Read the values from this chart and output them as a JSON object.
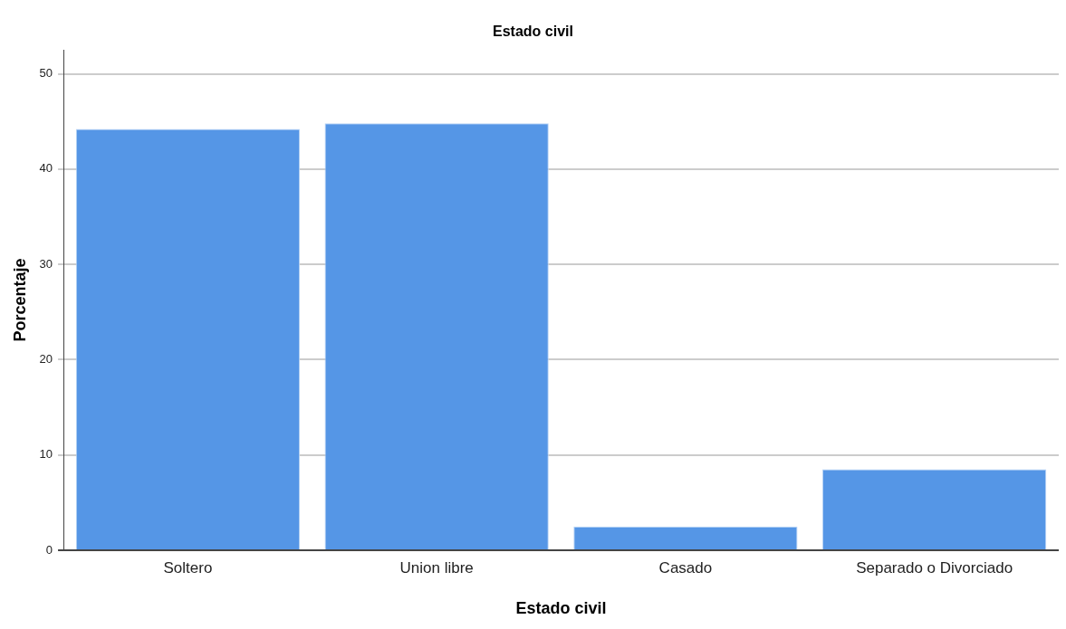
{
  "chart_data": {
    "type": "bar",
    "title": "Estado civil",
    "xlabel": "Estado civil",
    "ylabel": "Porcentaje",
    "categories": [
      "Soltero",
      "Union libre",
      "Casado",
      "Separado o Divorciado"
    ],
    "values": [
      44.2,
      44.8,
      2.5,
      8.5
    ],
    "color": "#5596e6",
    "ylim": [
      0,
      52.5
    ],
    "yticks": [
      0,
      10,
      20,
      30,
      40,
      50
    ],
    "grid": "y",
    "legend": false
  }
}
